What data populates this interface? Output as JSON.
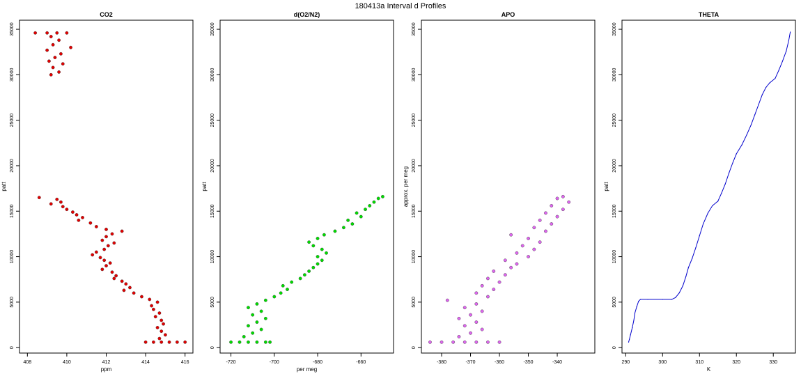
{
  "figure": {
    "title": "180413a   Interval d Profiles"
  },
  "chart_data": [
    {
      "type": "scatter",
      "title": "CO2",
      "xlabel": "ppm",
      "ylabel": "patt",
      "xlim": [
        407.6,
        416.4
      ],
      "ylim": [
        -600,
        36000
      ],
      "xticks": [
        408,
        410,
        412,
        414,
        416
      ],
      "yticks": [
        0,
        5000,
        10000,
        15000,
        20000,
        25000,
        30000,
        35000
      ],
      "color": "#e00000",
      "points": [
        [
          408.4,
          34600
        ],
        [
          409.0,
          34600
        ],
        [
          409.5,
          34600
        ],
        [
          410.0,
          34600
        ],
        [
          409.2,
          34200
        ],
        [
          409.6,
          33800
        ],
        [
          409.3,
          33300
        ],
        [
          410.2,
          33000
        ],
        [
          409.0,
          32700
        ],
        [
          409.7,
          32300
        ],
        [
          409.4,
          31900
        ],
        [
          409.1,
          31500
        ],
        [
          409.8,
          31200
        ],
        [
          409.3,
          30800
        ],
        [
          409.6,
          30300
        ],
        [
          409.2,
          30000
        ],
        [
          408.6,
          16500
        ],
        [
          409.5,
          16300
        ],
        [
          409.7,
          16000
        ],
        [
          409.2,
          15800
        ],
        [
          409.8,
          15500
        ],
        [
          410.0,
          15200
        ],
        [
          410.3,
          14900
        ],
        [
          410.5,
          14600
        ],
        [
          410.8,
          14300
        ],
        [
          410.6,
          14000
        ],
        [
          411.2,
          13700
        ],
        [
          411.5,
          13300
        ],
        [
          412.0,
          13000
        ],
        [
          412.8,
          12800
        ],
        [
          412.3,
          12500
        ],
        [
          412.0,
          12200
        ],
        [
          411.8,
          11800
        ],
        [
          412.4,
          11500
        ],
        [
          412.1,
          11200
        ],
        [
          411.9,
          10800
        ],
        [
          411.5,
          10500
        ],
        [
          411.3,
          10200
        ],
        [
          411.7,
          9900
        ],
        [
          411.9,
          9600
        ],
        [
          412.2,
          9300
        ],
        [
          412.0,
          9000
        ],
        [
          411.8,
          8600
        ],
        [
          412.3,
          8300
        ],
        [
          412.5,
          7900
        ],
        [
          412.4,
          7600
        ],
        [
          412.8,
          7300
        ],
        [
          413.0,
          7000
        ],
        [
          413.2,
          6600
        ],
        [
          412.9,
          6300
        ],
        [
          413.4,
          6000
        ],
        [
          413.8,
          5600
        ],
        [
          414.2,
          5300
        ],
        [
          414.6,
          5000
        ],
        [
          414.3,
          4600
        ],
        [
          414.4,
          4200
        ],
        [
          414.7,
          3800
        ],
        [
          414.5,
          3400
        ],
        [
          414.8,
          3000
        ],
        [
          414.9,
          2600
        ],
        [
          414.6,
          2200
        ],
        [
          414.8,
          1800
        ],
        [
          415.0,
          1400
        ],
        [
          414.7,
          1000
        ],
        [
          414.0,
          600
        ],
        [
          414.4,
          600
        ],
        [
          414.8,
          600
        ],
        [
          415.2,
          600
        ],
        [
          415.6,
          600
        ],
        [
          416.0,
          600
        ]
      ]
    },
    {
      "type": "scatter",
      "title": "d(O2/N2)",
      "xlabel": "per meg",
      "ylabel": "patt",
      "xlim": [
        -725,
        -645
      ],
      "ylim": [
        -600,
        36000
      ],
      "xticks": [
        -720,
        -700,
        -680,
        -660
      ],
      "yticks": [
        0,
        5000,
        10000,
        15000,
        20000,
        25000,
        30000,
        35000
      ],
      "color": "#00dd00",
      "points": [
        [
          -720,
          600
        ],
        [
          -716,
          600
        ],
        [
          -712,
          600
        ],
        [
          -708,
          600
        ],
        [
          -704,
          600
        ],
        [
          -702,
          600
        ],
        [
          -714,
          1200
        ],
        [
          -710,
          1600
        ],
        [
          -706,
          2000
        ],
        [
          -712,
          2400
        ],
        [
          -708,
          2800
        ],
        [
          -704,
          3200
        ],
        [
          -710,
          3600
        ],
        [
          -706,
          4000
        ],
        [
          -712,
          4400
        ],
        [
          -708,
          4800
        ],
        [
          -704,
          5200
        ],
        [
          -700,
          5600
        ],
        [
          -697,
          6000
        ],
        [
          -694,
          6400
        ],
        [
          -696,
          6800
        ],
        [
          -692,
          7200
        ],
        [
          -688,
          7600
        ],
        [
          -686,
          8000
        ],
        [
          -684,
          8400
        ],
        [
          -682,
          8800
        ],
        [
          -680,
          9200
        ],
        [
          -678,
          9600
        ],
        [
          -680,
          10000
        ],
        [
          -676,
          10400
        ],
        [
          -678,
          10800
        ],
        [
          -682,
          11200
        ],
        [
          -684,
          11600
        ],
        [
          -680,
          12000
        ],
        [
          -677,
          12400
        ],
        [
          -672,
          12800
        ],
        [
          -668,
          13200
        ],
        [
          -664,
          13600
        ],
        [
          -666,
          14000
        ],
        [
          -660,
          14400
        ],
        [
          -662,
          14800
        ],
        [
          -658,
          15200
        ],
        [
          -656,
          15600
        ],
        [
          -654,
          16000
        ],
        [
          -652,
          16400
        ],
        [
          -650,
          16600
        ]
      ]
    },
    {
      "type": "scatter",
      "title": "APO",
      "xlabel": "",
      "ylabel": "approx. per meg",
      "xlim": [
        -387,
        -327
      ],
      "ylim": [
        -600,
        36000
      ],
      "xticks": [
        -380,
        -370,
        -360,
        -350,
        -340
      ],
      "yticks": [
        0,
        5000,
        10000,
        15000,
        20000,
        25000,
        30000,
        35000
      ],
      "color": "#dd66ee",
      "points": [
        [
          -384,
          600
        ],
        [
          -380,
          600
        ],
        [
          -376,
          600
        ],
        [
          -372,
          600
        ],
        [
          -368,
          600
        ],
        [
          -364,
          600
        ],
        [
          -360,
          600
        ],
        [
          -374,
          1200
        ],
        [
          -370,
          1600
        ],
        [
          -366,
          2000
        ],
        [
          -372,
          2400
        ],
        [
          -368,
          2800
        ],
        [
          -374,
          3200
        ],
        [
          -370,
          3600
        ],
        [
          -366,
          4000
        ],
        [
          -372,
          4400
        ],
        [
          -368,
          4800
        ],
        [
          -378,
          5200
        ],
        [
          -364,
          5600
        ],
        [
          -368,
          6000
        ],
        [
          -362,
          6400
        ],
        [
          -366,
          6800
        ],
        [
          -360,
          7200
        ],
        [
          -364,
          7600
        ],
        [
          -358,
          8000
        ],
        [
          -362,
          8400
        ],
        [
          -356,
          8800
        ],
        [
          -354,
          9200
        ],
        [
          -358,
          9600
        ],
        [
          -350,
          10000
        ],
        [
          -354,
          10400
        ],
        [
          -348,
          10800
        ],
        [
          -352,
          11200
        ],
        [
          -346,
          11600
        ],
        [
          -350,
          12000
        ],
        [
          -356,
          12400
        ],
        [
          -344,
          12800
        ],
        [
          -348,
          13200
        ],
        [
          -342,
          13600
        ],
        [
          -346,
          14000
        ],
        [
          -340,
          14400
        ],
        [
          -344,
          14800
        ],
        [
          -338,
          15200
        ],
        [
          -342,
          15600
        ],
        [
          -336,
          16000
        ],
        [
          -340,
          16400
        ],
        [
          -338,
          16600
        ]
      ]
    },
    {
      "type": "line",
      "title": "THETA",
      "xlabel": "K",
      "ylabel": "patt",
      "xlim": [
        289,
        336
      ],
      "ylim": [
        -600,
        36000
      ],
      "xticks": [
        290,
        300,
        310,
        320,
        330
      ],
      "yticks": [
        0,
        5000,
        10000,
        15000,
        20000,
        25000,
        30000,
        35000
      ],
      "color": "#0000cc",
      "points": [
        [
          290.8,
          600
        ],
        [
          291.0,
          900
        ],
        [
          291.3,
          1400
        ],
        [
          291.8,
          2200
        ],
        [
          292.2,
          3000
        ],
        [
          292.5,
          3800
        ],
        [
          293.0,
          4500
        ],
        [
          293.5,
          5100
        ],
        [
          294.0,
          5300
        ],
        [
          296.0,
          5300
        ],
        [
          300.0,
          5300
        ],
        [
          302.5,
          5300
        ],
        [
          303.5,
          5500
        ],
        [
          304.5,
          6000
        ],
        [
          305.5,
          6800
        ],
        [
          306.3,
          7800
        ],
        [
          307.0,
          8800
        ],
        [
          308.0,
          9800
        ],
        [
          309.0,
          11000
        ],
        [
          310.0,
          12300
        ],
        [
          311.0,
          13600
        ],
        [
          312.3,
          14800
        ],
        [
          313.5,
          15600
        ],
        [
          315.0,
          16100
        ],
        [
          316.0,
          17000
        ],
        [
          317.0,
          18000
        ],
        [
          318.0,
          19200
        ],
        [
          319.0,
          20300
        ],
        [
          320.0,
          21300
        ],
        [
          321.5,
          22300
        ],
        [
          322.8,
          23400
        ],
        [
          324.0,
          24500
        ],
        [
          325.0,
          25600
        ],
        [
          326.0,
          26700
        ],
        [
          327.0,
          27800
        ],
        [
          328.0,
          28600
        ],
        [
          329.0,
          29100
        ],
        [
          330.5,
          29600
        ],
        [
          331.5,
          30500
        ],
        [
          332.5,
          31500
        ],
        [
          333.5,
          32600
        ],
        [
          334.2,
          33800
        ],
        [
          334.6,
          34700
        ]
      ]
    }
  ]
}
